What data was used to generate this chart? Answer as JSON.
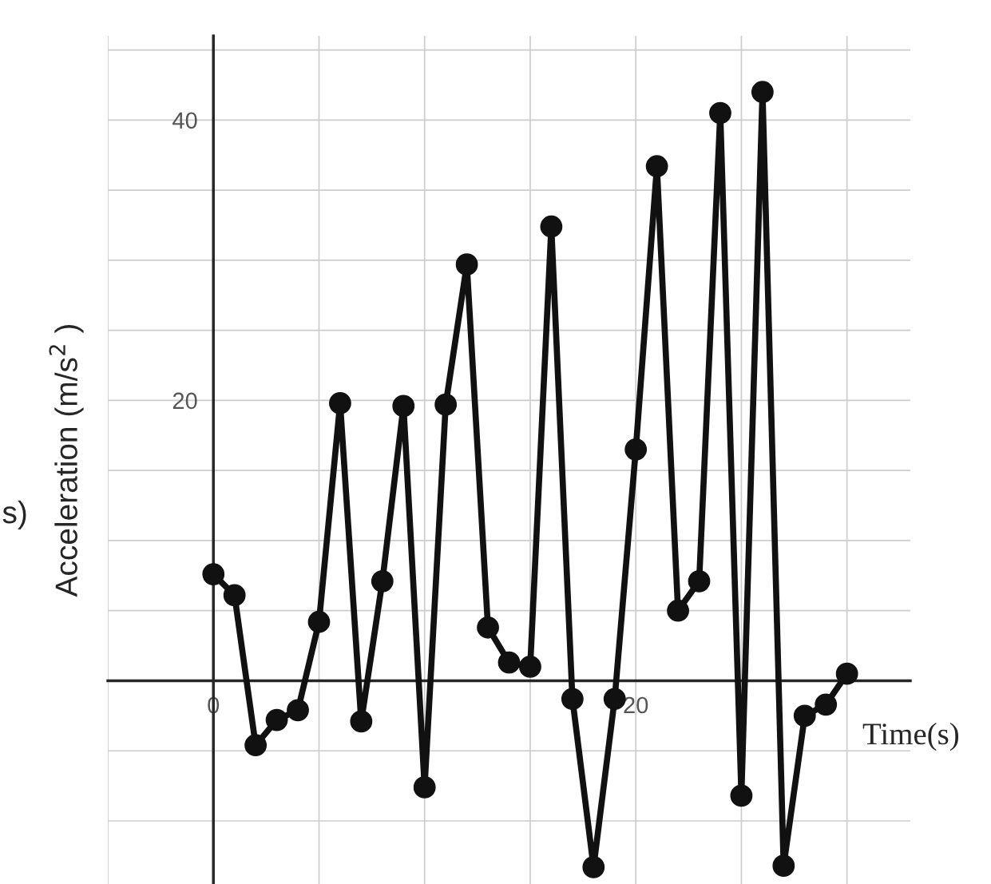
{
  "chart_data": {
    "type": "line",
    "xlabel": "Time(s)",
    "ylabel": "Acceleration (m/s$^{2}$ )",
    "annotations": [
      "s)"
    ],
    "x": [
      0,
      1,
      2,
      3,
      4,
      5,
      6,
      7,
      8,
      9,
      10,
      11,
      12,
      13,
      14,
      15,
      16,
      17,
      18,
      19,
      20,
      21,
      22,
      23,
      24,
      25,
      26,
      27,
      28,
      29,
      30
    ],
    "series": [
      {
        "color": "#111111",
        "values": [
          7.6,
          6.1,
          -4.6,
          -2.8,
          -2.1,
          4.2,
          19.8,
          -2.9,
          7.1,
          19.6,
          -7.6,
          19.7,
          29.7,
          3.8,
          1.3,
          1.0,
          32.4,
          -1.3,
          -13.3,
          -1.3,
          16.5,
          36.7,
          5.0,
          7.1,
          40.5,
          -8.2,
          42.0,
          -13.2,
          -2.5,
          -1.7,
          0.5
        ]
      }
    ],
    "xlim": [
      -5,
      33
    ],
    "ylim": [
      -14.5,
      46
    ],
    "xticks": [
      {
        "value": -5,
        "label": null
      },
      0,
      {
        "value": 5,
        "label": null
      },
      {
        "value": 10,
        "label": null
      },
      {
        "value": 15,
        "label": null
      },
      20,
      {
        "value": 25,
        "label": null
      },
      {
        "value": 30,
        "label": null
      }
    ],
    "yticks": [
      {
        "value": -10,
        "label": null
      },
      {
        "value": -5,
        "label": null
      },
      {
        "value": 5,
        "label": null
      },
      {
        "value": 10,
        "label": null
      },
      {
        "value": 15,
        "label": null
      },
      20,
      {
        "value": 25,
        "label": null
      },
      {
        "value": 30,
        "label": null
      },
      {
        "value": 35,
        "label": null
      },
      40,
      {
        "value": 45,
        "label": null
      }
    ],
    "grid": true,
    "marker": "circle",
    "line_style": "solid"
  }
}
